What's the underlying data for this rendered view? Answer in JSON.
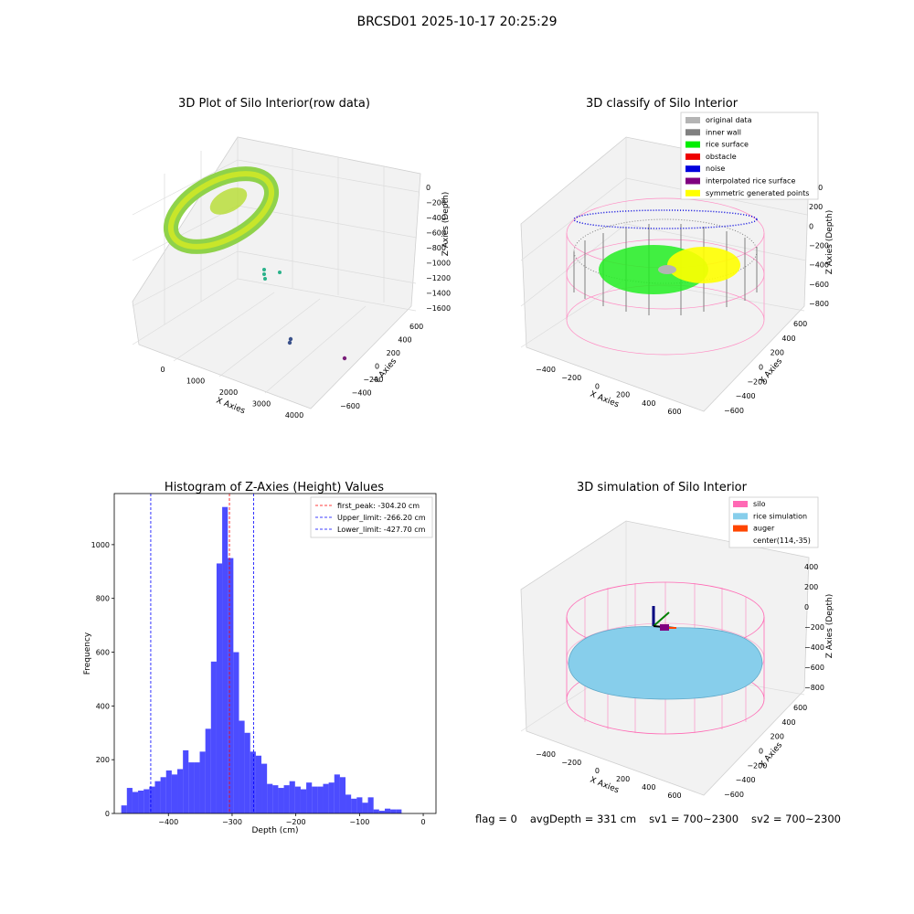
{
  "figure": {
    "title": "BRCSD01 2025-10-17 20:25:29"
  },
  "panels": {
    "raw": {
      "title": "3D Plot of Silo Interior(row data)",
      "xlabel": "X Axies",
      "ylabel": "Y Axies",
      "zlabel": "Z Axies (Depth)",
      "xticks": [
        "0",
        "1000",
        "2000",
        "3000",
        "4000"
      ],
      "yticks": [
        "600",
        "400",
        "200",
        "0",
        "−200",
        "−400",
        "−600"
      ],
      "zticks": [
        "0",
        "−200",
        "−400",
        "−600",
        "−800",
        "−1000",
        "−1200",
        "−1400",
        "−1600"
      ]
    },
    "classify": {
      "title": "3D classify of Silo Interior",
      "xlabel": "X Axies",
      "ylabel": "Y Axies",
      "zlabel": "Z Axies (Depth)",
      "xticks": [
        "−400",
        "−200",
        "0",
        "200",
        "400",
        "600"
      ],
      "yticks": [
        "600",
        "400",
        "200",
        "0",
        "−200",
        "−400",
        "−600"
      ],
      "zticks": [
        "400",
        "200",
        "0",
        "−200",
        "−400",
        "−600",
        "−800"
      ],
      "legend": [
        {
          "label": "original data",
          "color": "#b4b4b4"
        },
        {
          "label": "inner wall",
          "color": "#808080"
        },
        {
          "label": "rice surface",
          "color": "#00ee00"
        },
        {
          "label": "obstacle",
          "color": "#ee0000"
        },
        {
          "label": "noise",
          "color": "#0000dd"
        },
        {
          "label": "interpolated rice surface",
          "color": "#800080"
        },
        {
          "label": "symmetric generated points",
          "color": "#ffff00"
        }
      ]
    },
    "sim": {
      "title": "3D simulation of Silo Interior",
      "xlabel": "X Axies",
      "ylabel": "Y Axies",
      "zlabel": "Z Axies (Depth)",
      "xticks": [
        "−400",
        "−200",
        "0",
        "200",
        "400",
        "600"
      ],
      "yticks": [
        "600",
        "400",
        "200",
        "0",
        "−200",
        "−400",
        "−600"
      ],
      "zticks": [
        "400",
        "200",
        "0",
        "−200",
        "−400",
        "−600",
        "−800"
      ],
      "legend": [
        {
          "label": "silo",
          "color": "#ff69b4"
        },
        {
          "label": "rice simulation",
          "color": "#87ceeb"
        },
        {
          "label": "auger",
          "color": "#ff4500"
        },
        {
          "label": "center(114,-35)",
          "color": ""
        }
      ]
    }
  },
  "chart_data": {
    "type": "bar",
    "title": "Histogram of Z-Axies (Height) Values",
    "xlabel": "Depth (cm)",
    "ylabel": "Frequency",
    "xlim": [
      -485,
      20
    ],
    "ylim": [
      0,
      1190
    ],
    "xticks": [
      -400,
      -300,
      -200,
      -100,
      0
    ],
    "yticks": [
      0,
      200,
      400,
      600,
      800,
      1000
    ],
    "bin_width": 8.8,
    "bin_start": -474,
    "values": [
      30,
      95,
      80,
      85,
      90,
      100,
      120,
      135,
      160,
      145,
      165,
      235,
      190,
      190,
      230,
      315,
      565,
      930,
      1140,
      950,
      600,
      345,
      300,
      230,
      215,
      185,
      110,
      105,
      95,
      105,
      120,
      100,
      90,
      115,
      100,
      100,
      110,
      115,
      145,
      135,
      70,
      55,
      60,
      40,
      60,
      15,
      10,
      18,
      15,
      15
    ],
    "bar_color": "#0000ff",
    "vlines": [
      {
        "label": "first_peak: -304.20 cm",
        "x": -304.2,
        "color": "#ff0000"
      },
      {
        "label": "Upper_limit: -266.20 cm",
        "x": -266.2,
        "color": "#0000ff"
      },
      {
        "label": "Lower_limit: -427.70 cm",
        "x": -427.7,
        "color": "#0000ff"
      }
    ],
    "legend_position": "top-right"
  },
  "footer": {
    "flag": "flag = 0",
    "avg": "avgDepth = 331 cm",
    "sv1": "sv1 = 700~2300",
    "sv2": "sv2 = 700~2300"
  }
}
